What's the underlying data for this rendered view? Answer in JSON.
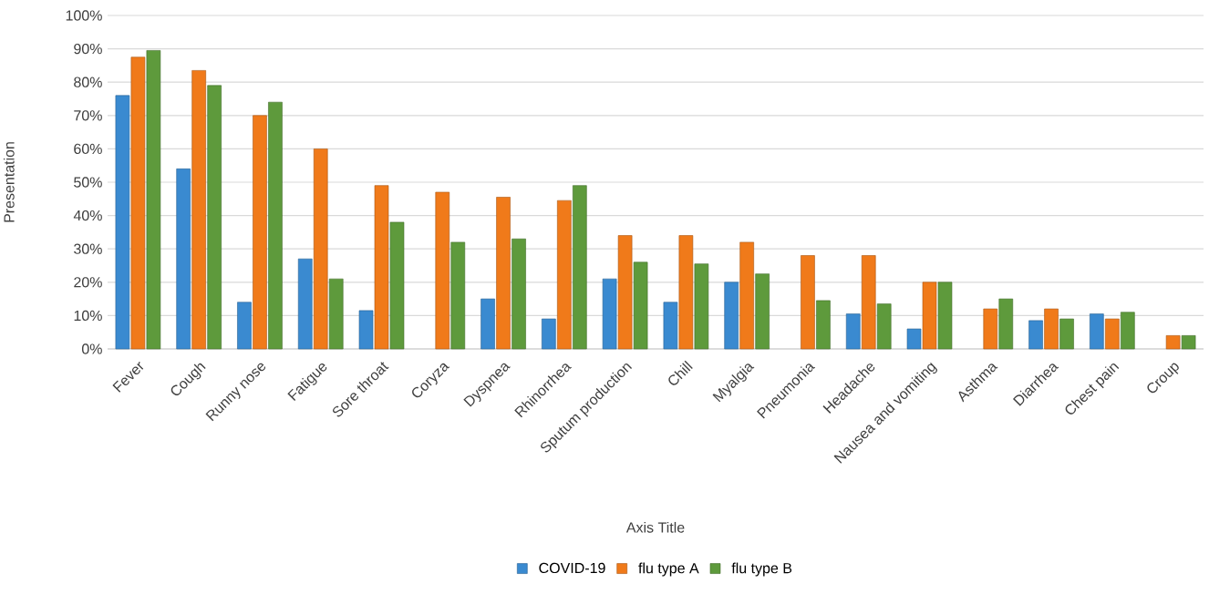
{
  "chart_data": {
    "type": "bar",
    "xlabel": "Axis Title",
    "ylabel": "Presentation",
    "categories": [
      "Fever",
      "Cough",
      "Runny nose",
      "Fatigue",
      "Sore throat",
      "Coryza",
      "Dyspnea",
      "Rhinorrhea",
      "Sputum production",
      "Chill",
      "Myalgia",
      "Pneumonia",
      "Headache",
      "Nausea and vomiting",
      "Asthma",
      "Diarrhea",
      "Chest pain",
      "Croup"
    ],
    "series": [
      {
        "name": "COVID-19",
        "color": "#3a8ad0",
        "values": [
          76,
          54,
          14,
          27,
          11.5,
          null,
          15,
          9,
          21,
          14,
          20,
          null,
          10.5,
          6,
          null,
          8.5,
          10.5,
          null
        ]
      },
      {
        "name": "flu type A",
        "color": "#f07a1a",
        "values": [
          87.5,
          83.5,
          70,
          60,
          49,
          47,
          45.5,
          44.5,
          34,
          34,
          32,
          28,
          28,
          20,
          12,
          12,
          9,
          4
        ]
      },
      {
        "name": "flu type B",
        "color": "#5e9a3c",
        "values": [
          89.5,
          79,
          74,
          21,
          38,
          32,
          33,
          49,
          26,
          25.5,
          22.5,
          14.5,
          13.5,
          20,
          15,
          9,
          11,
          4
        ]
      }
    ],
    "ylim": [
      0,
      100
    ],
    "yticks": [
      {
        "value": 0,
        "label": "0%"
      },
      {
        "value": 10,
        "label": "10%"
      },
      {
        "value": 20,
        "label": "20%"
      },
      {
        "value": 30,
        "label": "30%"
      },
      {
        "value": 40,
        "label": "40%"
      },
      {
        "value": 50,
        "label": "50%"
      },
      {
        "value": 60,
        "label": "60%"
      },
      {
        "value": 70,
        "label": "70%"
      },
      {
        "value": 80,
        "label": "80%"
      },
      {
        "value": 90,
        "label": "90%"
      },
      {
        "value": 100,
        "label": "100%"
      }
    ],
    "grid": "y",
    "legend": "bottom"
  }
}
